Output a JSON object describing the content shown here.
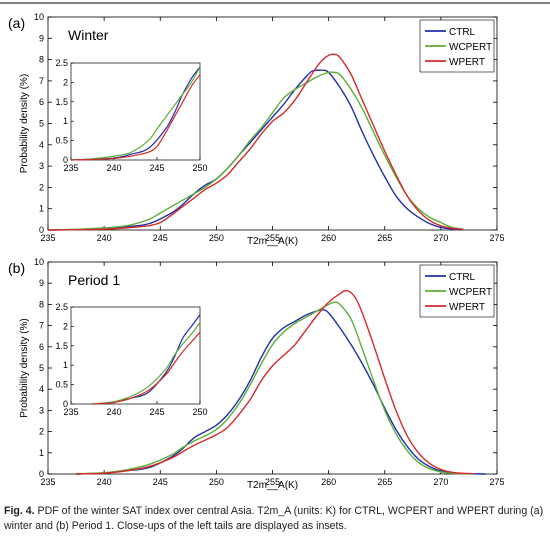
{
  "chart_data": [
    {
      "type": "line",
      "panel_label": "(a)",
      "title": "Winter",
      "xlabel": "T2m__A(K)",
      "ylabel": "Probability  density  (%)",
      "xlim": [
        235,
        275
      ],
      "ylim": [
        0,
        10
      ],
      "xticks": [
        235,
        240,
        245,
        250,
        255,
        260,
        265,
        270,
        275
      ],
      "yticks": [
        0,
        1,
        2,
        3,
        4,
        5,
        6,
        7,
        8,
        9,
        10
      ],
      "legend_position": "top-right",
      "colors": {
        "CTRL": "#2030a8",
        "WCPERT": "#5cad3a",
        "WPERT": "#d42a2a"
      },
      "series": [
        {
          "name": "CTRL",
          "x": [
            235,
            237,
            240,
            242,
            244,
            246,
            247,
            248,
            249,
            250,
            251,
            252,
            253,
            254,
            255,
            256,
            257,
            258,
            258.5,
            259,
            259.5,
            260,
            261,
            262,
            263,
            264,
            265,
            266,
            267,
            268,
            269,
            270,
            271,
            272
          ],
          "y": [
            0,
            0.02,
            0.05,
            0.15,
            0.3,
            0.8,
            1.2,
            1.7,
            2.1,
            2.4,
            2.9,
            3.5,
            4.1,
            4.7,
            5.3,
            5.9,
            6.6,
            7.2,
            7.45,
            7.5,
            7.5,
            7.4,
            6.7,
            5.8,
            4.6,
            3.5,
            2.5,
            1.6,
            1.0,
            0.6,
            0.3,
            0.12,
            0.05,
            0.02
          ]
        },
        {
          "name": "WCPERT",
          "x": [
            235,
            237,
            240,
            242,
            244,
            245,
            246,
            247,
            248,
            249,
            250,
            251,
            252,
            253,
            254,
            255,
            256,
            257,
            258,
            259,
            260,
            260.5,
            261,
            262,
            263,
            264,
            265,
            266,
            267,
            268,
            269,
            270,
            271,
            272
          ],
          "y": [
            0,
            0.02,
            0.1,
            0.2,
            0.5,
            0.8,
            1.1,
            1.4,
            1.7,
            2.0,
            2.4,
            2.9,
            3.5,
            4.2,
            4.8,
            5.5,
            6.2,
            6.6,
            6.9,
            7.2,
            7.4,
            7.4,
            7.3,
            6.6,
            5.7,
            4.6,
            3.5,
            2.5,
            1.6,
            1.0,
            0.6,
            0.35,
            0.12,
            0.04
          ]
        },
        {
          "name": "WPERT",
          "x": [
            235,
            237,
            240,
            242,
            244,
            245,
            246,
            247,
            248,
            249,
            250,
            251,
            252,
            253,
            254,
            255,
            256,
            257,
            258,
            259,
            259.5,
            260,
            260.5,
            261,
            262,
            263,
            264,
            265,
            266,
            267,
            268,
            269,
            270,
            271,
            272
          ],
          "y": [
            0,
            0.01,
            0.04,
            0.1,
            0.2,
            0.35,
            0.7,
            1.1,
            1.5,
            1.9,
            2.2,
            2.6,
            3.2,
            3.8,
            4.5,
            5.1,
            5.5,
            6.1,
            6.9,
            7.7,
            8.0,
            8.2,
            8.25,
            8.1,
            7.3,
            6.1,
            4.9,
            3.7,
            2.6,
            1.6,
            0.9,
            0.45,
            0.2,
            0.08,
            0.03
          ]
        }
      ],
      "inset": {
        "xlim": [
          235,
          250
        ],
        "ylim": [
          0,
          2.5
        ],
        "xticks": [
          235,
          240,
          245,
          250
        ],
        "yticks": [
          0,
          0.5,
          1,
          1.5,
          2,
          2.5
        ]
      }
    },
    {
      "type": "line",
      "panel_label": "(b)",
      "title": "Period  1",
      "xlabel": "T2m__A(K)",
      "ylabel": "Probability  density  (%)",
      "xlim": [
        235,
        275
      ],
      "ylim": [
        0,
        10
      ],
      "xticks": [
        235,
        240,
        245,
        250,
        255,
        260,
        265,
        270,
        275
      ],
      "yticks": [
        0,
        1,
        2,
        3,
        4,
        5,
        6,
        7,
        8,
        9,
        10
      ],
      "legend_position": "top-right",
      "colors": {
        "CTRL": "#2030a8",
        "WCPERT": "#5cad3a",
        "WPERT": "#d42a2a"
      },
      "series": [
        {
          "name": "CTRL",
          "x": [
            237.5,
            240,
            242,
            244,
            246,
            247,
            248,
            249,
            250,
            251,
            252,
            253,
            254,
            255,
            256,
            257,
            258,
            259,
            259.5,
            260,
            261,
            262,
            263,
            264,
            265,
            266,
            267,
            268,
            269,
            270,
            271,
            272,
            273,
            274
          ],
          "y": [
            0,
            0.05,
            0.15,
            0.3,
            0.8,
            1.2,
            1.7,
            2.0,
            2.3,
            2.8,
            3.5,
            4.4,
            5.5,
            6.4,
            6.9,
            7.2,
            7.5,
            7.7,
            7.75,
            7.6,
            6.9,
            6.1,
            5.2,
            4.2,
            3.1,
            2.1,
            1.3,
            0.7,
            0.35,
            0.15,
            0.06,
            0.02,
            0.01,
            0
          ]
        },
        {
          "name": "WCPERT",
          "x": [
            237.5,
            240,
            242,
            244,
            246,
            247,
            248,
            249,
            250,
            251,
            252,
            253,
            254,
            255,
            256,
            257,
            258,
            259,
            260,
            260.5,
            261,
            262,
            263,
            264,
            265,
            266,
            267,
            268,
            269,
            270,
            271,
            272,
            273
          ],
          "y": [
            0,
            0.06,
            0.2,
            0.45,
            0.9,
            1.25,
            1.55,
            1.8,
            2.1,
            2.6,
            3.3,
            4.2,
            5.2,
            6.1,
            6.7,
            7.1,
            7.4,
            7.7,
            8.0,
            8.1,
            8.0,
            7.3,
            5.9,
            4.4,
            3.0,
            1.9,
            1.1,
            0.55,
            0.25,
            0.1,
            0.04,
            0.01,
            0
          ]
        },
        {
          "name": "WPERT",
          "x": [
            237.5,
            240,
            242,
            244,
            246,
            247,
            248,
            249,
            250,
            251,
            252,
            253,
            254,
            255,
            256,
            257,
            258,
            259,
            260,
            261,
            261.5,
            262,
            262.5,
            263,
            264,
            265,
            266,
            267,
            268,
            269,
            270,
            271,
            272,
            273
          ],
          "y": [
            0,
            0.04,
            0.15,
            0.35,
            0.75,
            1.05,
            1.35,
            1.6,
            1.85,
            2.2,
            2.8,
            3.5,
            4.4,
            5.1,
            5.6,
            6.1,
            6.8,
            7.5,
            8.1,
            8.5,
            8.65,
            8.55,
            8.2,
            7.6,
            6.1,
            4.5,
            3.0,
            1.8,
            1.0,
            0.5,
            0.22,
            0.08,
            0.03,
            0.01
          ]
        }
      ],
      "inset": {
        "xlim": [
          235,
          250
        ],
        "ylim": [
          0,
          2.5
        ],
        "xticks": [
          235,
          240,
          245,
          250
        ],
        "yticks": [
          0,
          0.5,
          1,
          1.5,
          2,
          2.5
        ]
      }
    }
  ],
  "caption": {
    "bold": "Fig. 4.",
    "text": " PDF of the winter SAT index over central Asia. T2m_A (units: K) for CTRL, WCPERT and WPERT during (a) winter and (b) Period 1. Close-ups of the left tails are displayed as insets."
  }
}
